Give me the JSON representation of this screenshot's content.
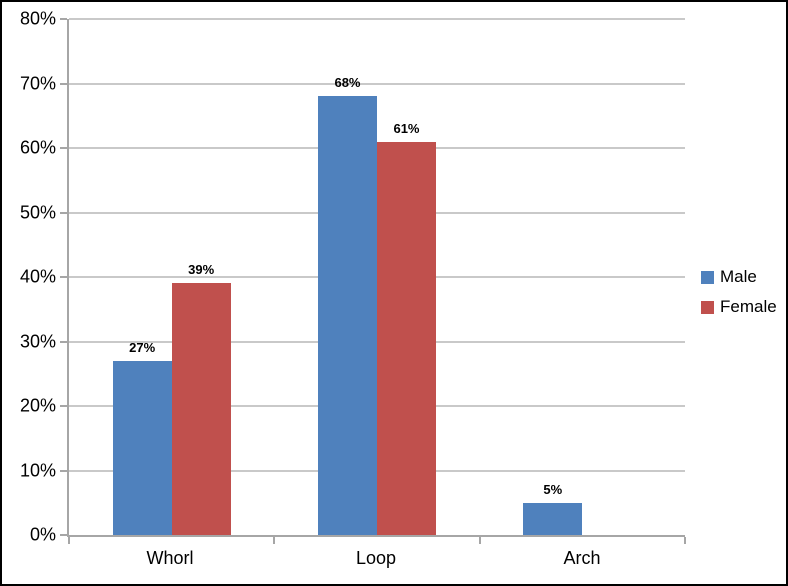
{
  "chart_data": {
    "type": "bar",
    "categories": [
      "Whorl",
      "Loop",
      "Arch"
    ],
    "series": [
      {
        "name": "Male",
        "color": "#4F81BD",
        "values": [
          27,
          68,
          5
        ],
        "labels": [
          "27%",
          "68%",
          "5%"
        ]
      },
      {
        "name": "Female",
        "color": "#C0504D",
        "values": [
          39,
          61,
          0
        ],
        "labels": [
          "39%",
          "61%",
          ""
        ]
      }
    ],
    "title": "",
    "xlabel": "",
    "ylabel": "",
    "ylim": [
      0,
      80
    ],
    "ytick_step": 10,
    "ytick_labels": [
      "0%",
      "10%",
      "20%",
      "30%",
      "40%",
      "50%",
      "60%",
      "70%",
      "80%"
    ],
    "grid": true,
    "legend_position": "right",
    "colors": {
      "gridline": "#C9C9C9",
      "axis": "#A6A6A6",
      "text": "#000000",
      "frame_border": "#000000",
      "background": "#FFFFFF"
    }
  }
}
